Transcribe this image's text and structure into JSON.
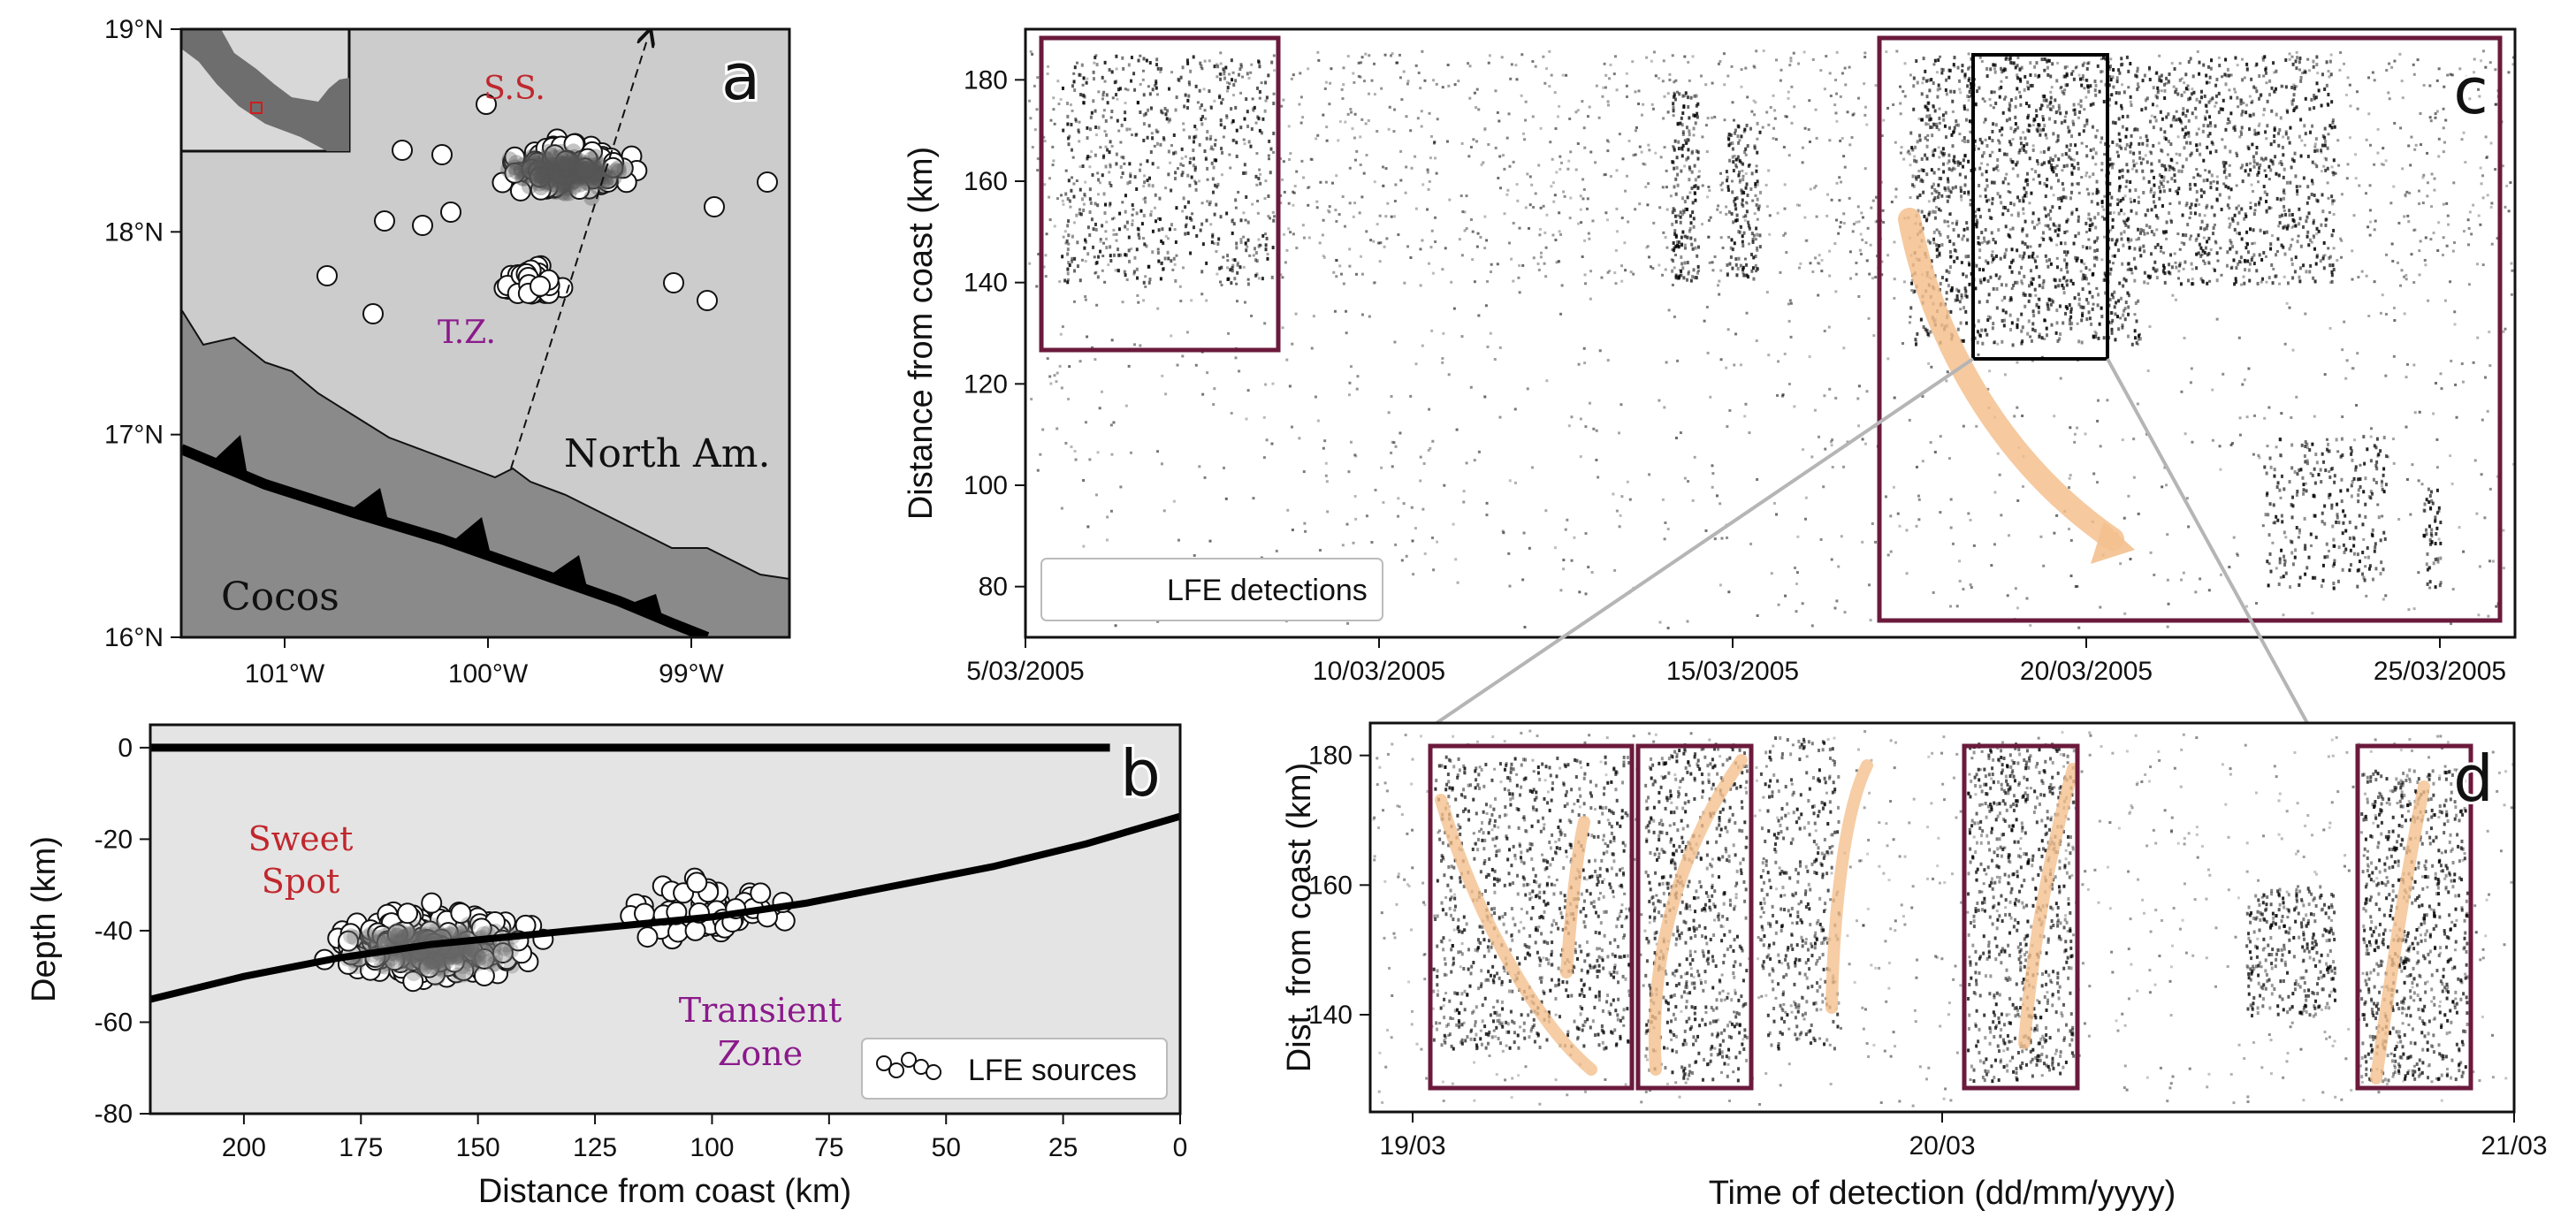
{
  "panel_a": {
    "letter": "a",
    "lat_ticks": [
      "19°N",
      "18°N",
      "17°N",
      "16°N"
    ],
    "lon_ticks": [
      "101°W",
      "100°W",
      "99°W"
    ],
    "labels": {
      "ss": "S.S.",
      "tz": "T.Z.",
      "north": "North Am.",
      "cocos": "Cocos"
    },
    "colors": {
      "ocean": "#cccccc",
      "land": "#8a8a8a",
      "ss": "#c0272d",
      "tz": "#8b1a8b"
    }
  },
  "panel_b": {
    "letter": "b",
    "xlabel": "Distance from coast (km)",
    "ylabel": "Depth (km)",
    "x_ticks": [
      "200",
      "175",
      "150",
      "125",
      "100",
      "75",
      "50",
      "25",
      "0"
    ],
    "y_ticks": [
      "0",
      "-20",
      "-40",
      "-60",
      "-80"
    ],
    "labels": {
      "sweet1": "Sweet",
      "sweet2": "Spot",
      "trans1": "Transient",
      "trans2": "Zone"
    },
    "legend": "LFE sources"
  },
  "panel_c": {
    "letter": "c",
    "ylabel": "Distance from coast (km)",
    "y_ticks": [
      "180",
      "160",
      "140",
      "120",
      "100",
      "80"
    ],
    "x_ticks": [
      "5/03/2005",
      "10/03/2005",
      "15/03/2005",
      "20/03/2005",
      "25/03/2005"
    ],
    "legend": "LFE detections"
  },
  "panel_d": {
    "letter": "d",
    "ylabel": "Dist. from coast (km)",
    "xlabel": "Time of detection (dd/mm/yyyy)",
    "y_ticks": [
      "180",
      "160",
      "140"
    ],
    "x_ticks": [
      "19/03",
      "20/03",
      "21/03"
    ]
  },
  "chart_data": [
    {
      "type": "scatter",
      "panel": "b",
      "xlabel": "Distance from coast (km)",
      "ylabel": "Depth (km)",
      "xlim": [
        220,
        0
      ],
      "ylim": [
        -80,
        5
      ],
      "series": [
        {
          "name": "LFE sources"
        }
      ],
      "lines": {
        "slab": {
          "x": [
            220,
            200,
            180,
            160,
            140,
            120,
            100,
            80,
            60,
            40,
            20,
            0
          ],
          "y": [
            -55,
            -50,
            -46,
            -43,
            -41,
            -39,
            -37,
            -34,
            -30,
            -26,
            -21,
            -15
          ]
        },
        "surface": {
          "x": [
            220,
            15
          ],
          "y": [
            0,
            0
          ]
        }
      }
    },
    {
      "type": "scatter",
      "panel": "c",
      "ylabel": "Distance from coast (km)",
      "ylim": [
        70,
        190
      ],
      "series": [
        {
          "name": "LFE detections"
        }
      ]
    },
    {
      "type": "scatter",
      "panel": "d",
      "xlabel": "Time of detection (dd/mm/yyyy)",
      "ylabel": "Dist. from coast (km)",
      "ylim": [
        125,
        185
      ]
    }
  ]
}
